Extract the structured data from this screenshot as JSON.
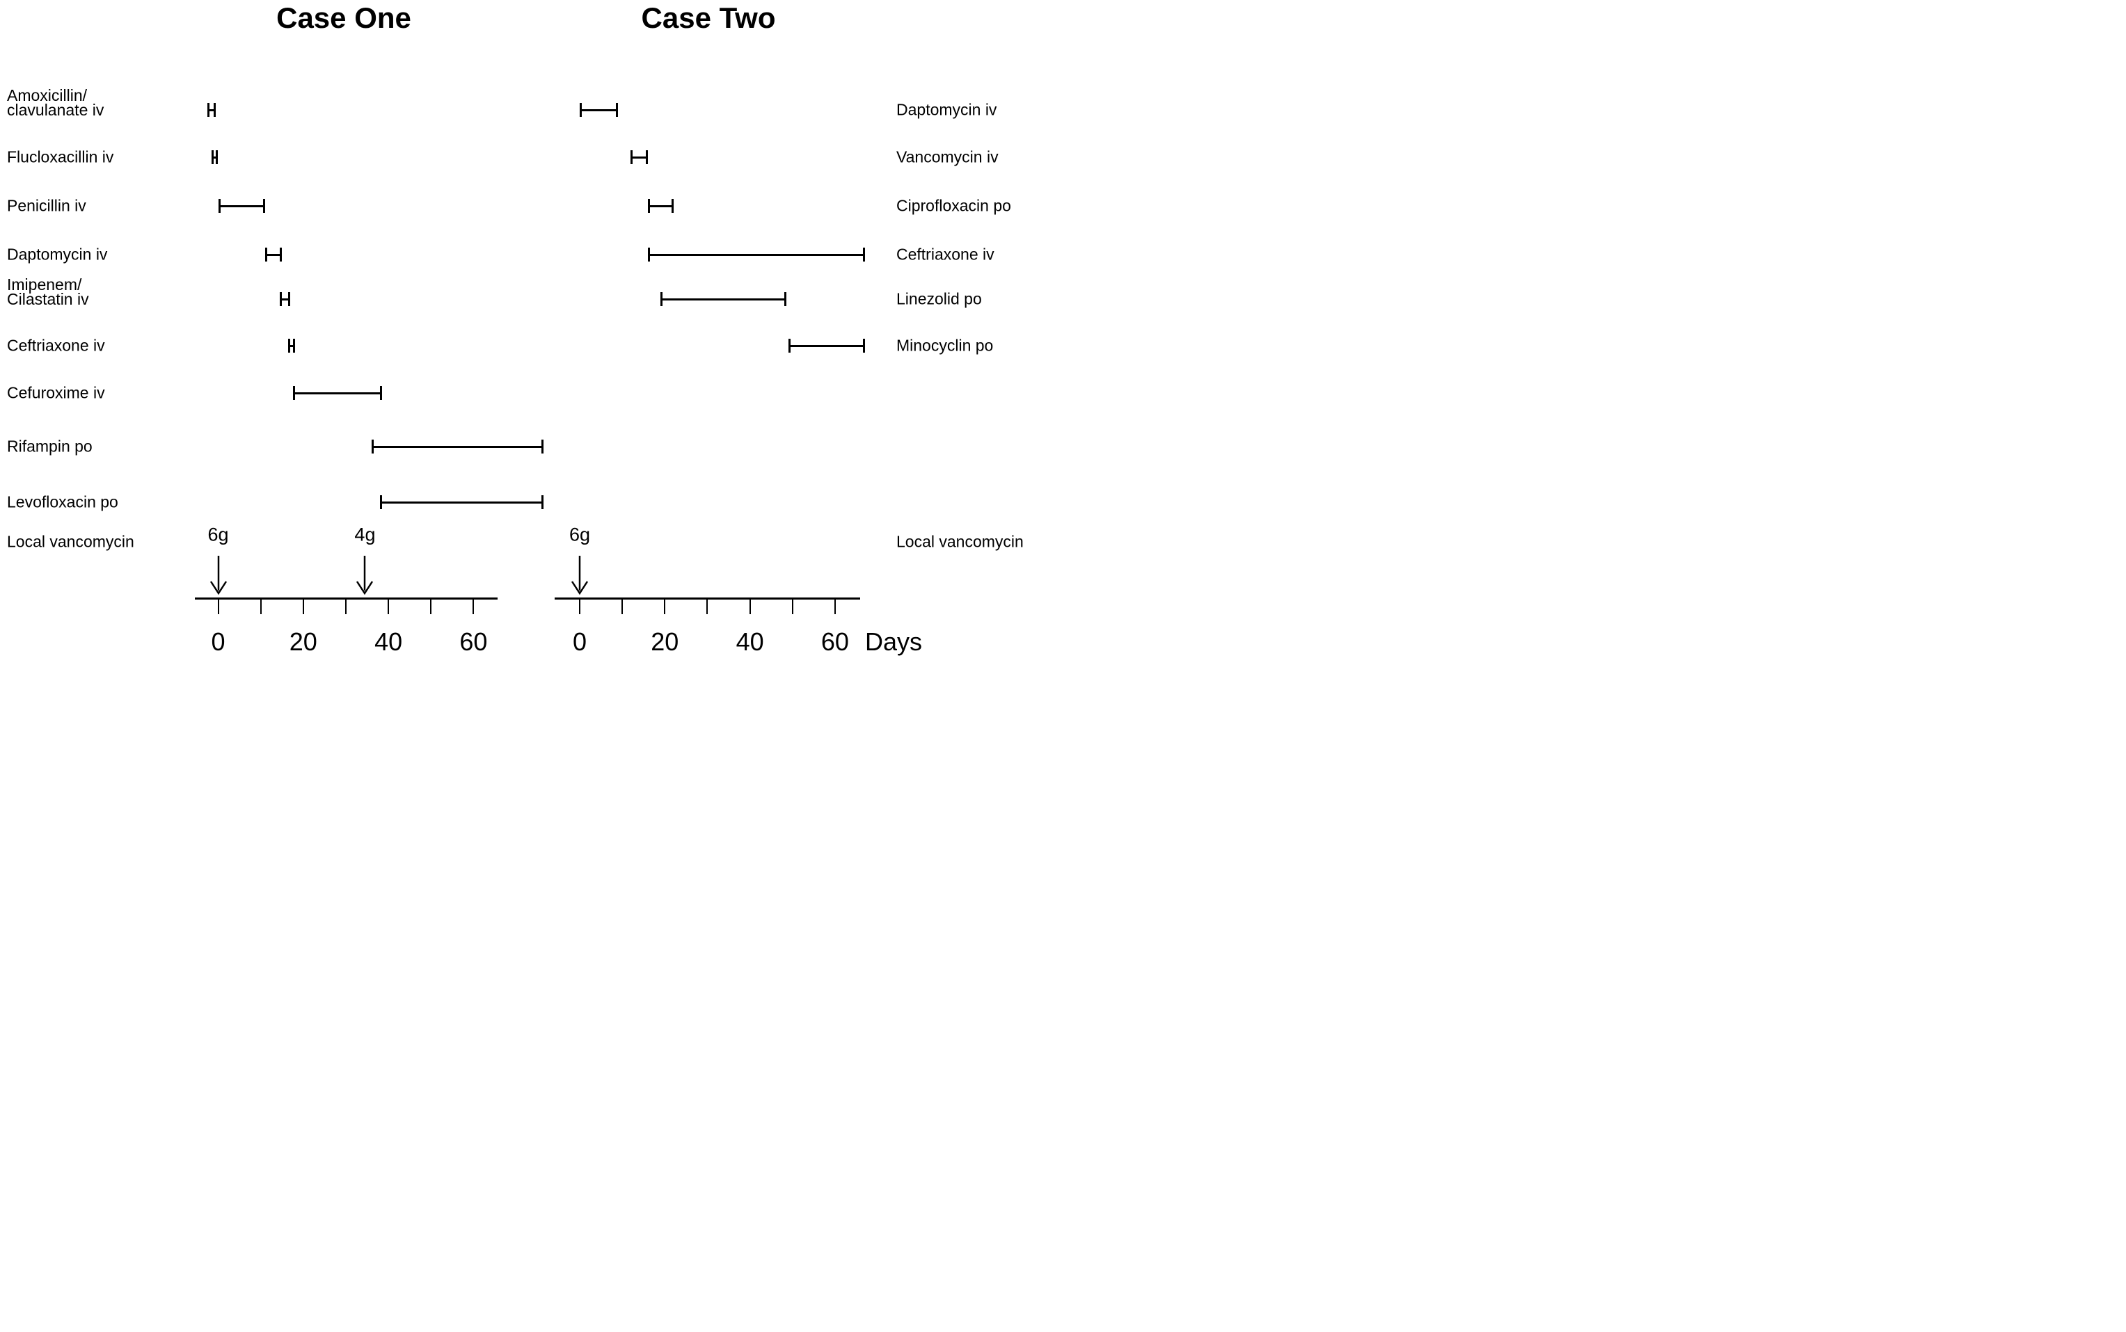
{
  "figure": {
    "days_label": "Days",
    "background_color": "#ffffff",
    "ink_color": "#000000"
  },
  "chart_data": [
    {
      "type": "bar",
      "subtype": "horizontal-interval-timeline",
      "title": "Case One",
      "xlabel": "Days",
      "xlim": [
        -5.5,
        65.7
      ],
      "grid": false,
      "label_side": "left",
      "xticks_days": [
        0,
        10,
        20,
        30,
        40,
        50,
        60
      ],
      "labeled_tick_days": [
        0,
        20,
        40,
        60
      ],
      "xtick_labels": [
        "0",
        "20",
        "40",
        "60"
      ],
      "series": [
        {
          "label": "Amoxicillin/clavulanate iv",
          "label_lines": [
            "Amoxicillin/",
            "clavulanate iv"
          ],
          "start_day": -2.5,
          "end_day": -0.5
        },
        {
          "label": "Flucloxacillin iv",
          "label_lines": [
            "Flucloxacillin iv"
          ],
          "start_day": -1.5,
          "end_day": 0
        },
        {
          "label": "Penicillin iv",
          "label_lines": [
            "Penicillin iv"
          ],
          "start_day": 0,
          "end_day": 11
        },
        {
          "label": "Daptomycin iv",
          "label_lines": [
            "Daptomycin iv"
          ],
          "start_day": 11,
          "end_day": 15
        },
        {
          "label": "Imipenem/Cilastatin iv",
          "label_lines": [
            "Imipenem/",
            "Cilastatin iv"
          ],
          "start_day": 14.5,
          "end_day": 17
        },
        {
          "label": "Ceftriaxone iv",
          "label_lines": [
            "Ceftriaxone iv"
          ],
          "start_day": 16.5,
          "end_day": 18
        },
        {
          "label": "Cefuroxime iv",
          "label_lines": [
            "Cefuroxime iv"
          ],
          "start_day": 17.5,
          "end_day": 38.5
        },
        {
          "label": "Rifampin po",
          "label_lines": [
            "Rifampin po"
          ],
          "start_day": 36,
          "end_day": 76.5
        },
        {
          "label": "Levofloxacin po",
          "label_lines": [
            "Levofloxacin po"
          ],
          "start_day": 38,
          "end_day": 76.5
        }
      ],
      "local_vancomycin": {
        "label": "Local vancomycin",
        "doses": [
          {
            "label": "6g",
            "day": 0
          },
          {
            "label": "4g",
            "day": 34.5
          }
        ]
      }
    },
    {
      "type": "bar",
      "subtype": "horizontal-interval-timeline",
      "title": "Case Two",
      "xlabel": "Days",
      "xlim": [
        -5.9,
        65.9
      ],
      "grid": false,
      "label_side": "right",
      "xticks_days": [
        0,
        10,
        20,
        30,
        40,
        50,
        60
      ],
      "labeled_tick_days": [
        0,
        20,
        40,
        60
      ],
      "xtick_labels": [
        "0",
        "20",
        "40",
        "60"
      ],
      "series": [
        {
          "label": "Daptomycin iv",
          "label_lines": [
            "Daptomycin iv"
          ],
          "start_day": 0,
          "end_day": 9
        },
        {
          "label": "Vancomycin iv",
          "label_lines": [
            "Vancomycin iv"
          ],
          "start_day": 12,
          "end_day": 16
        },
        {
          "label": "Ciprofloxacin po",
          "label_lines": [
            "Ciprofloxacin po"
          ],
          "start_day": 16,
          "end_day": 22
        },
        {
          "label": "Ceftriaxone iv",
          "label_lines": [
            "Ceftriaxone iv"
          ],
          "start_day": 16,
          "end_day": 67
        },
        {
          "label": "Linezolid po",
          "label_lines": [
            "Linezolid po"
          ],
          "start_day": 19,
          "end_day": 48.5
        },
        {
          "label": "Minocyclin po",
          "label_lines": [
            "Minocyclin po"
          ],
          "start_day": 49,
          "end_day": 67
        }
      ],
      "local_vancomycin": {
        "label": "Local vancomycin",
        "doses": [
          {
            "label": "6g",
            "day": 0
          }
        ]
      }
    }
  ]
}
